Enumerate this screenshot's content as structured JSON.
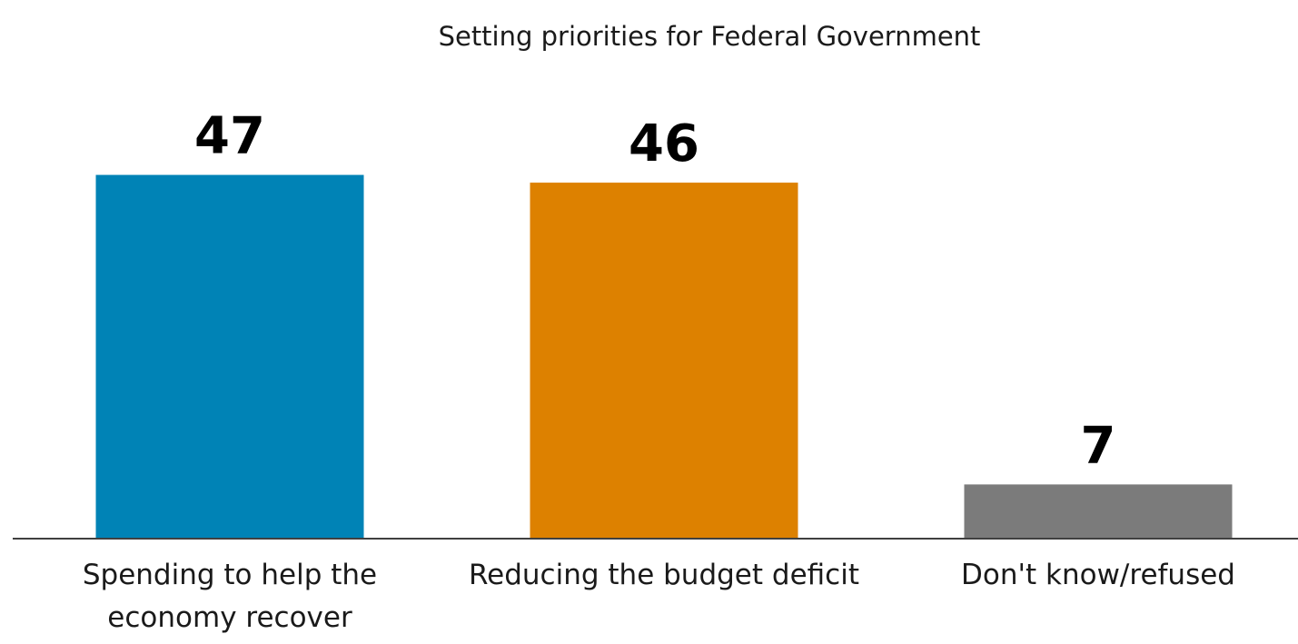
{
  "chart_data": {
    "type": "bar",
    "title": "Setting priorities for Federal Government",
    "categories": [
      [
        "Spending to help the",
        "economy recover"
      ],
      [
        "Reducing the budget deficit"
      ],
      [
        "Don't know/refused"
      ]
    ],
    "values": [
      47,
      46,
      7
    ],
    "data_labels": [
      "47",
      "46",
      "7"
    ],
    "colors": [
      "#0083b6",
      "#dd8100",
      "#7b7b7b"
    ],
    "axis_color": "#404040",
    "grid": false,
    "legend": "none"
  }
}
